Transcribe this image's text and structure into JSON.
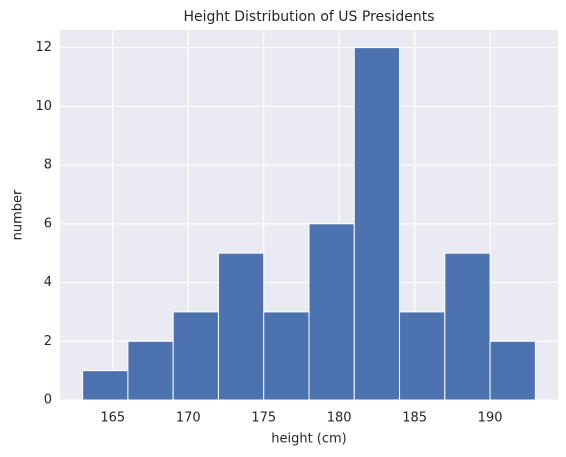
{
  "chart_data": {
    "type": "histogram",
    "title": "Height Distribution of US Presidents",
    "xlabel": "height (cm)",
    "ylabel": "number",
    "bins": [
      163,
      166,
      169,
      172,
      175,
      178,
      181,
      184,
      187,
      190,
      193
    ],
    "counts": [
      1,
      2,
      3,
      5,
      3,
      6,
      12,
      3,
      5,
      2
    ],
    "color": "#4c72b0",
    "xlim": [
      161.5,
      194.5
    ],
    "xticks": [
      165,
      170,
      175,
      180,
      185,
      190
    ],
    "ylim": [
      0,
      12.6
    ],
    "yticks": [
      0,
      2,
      4,
      6,
      8,
      10,
      12
    ],
    "grid": true
  }
}
